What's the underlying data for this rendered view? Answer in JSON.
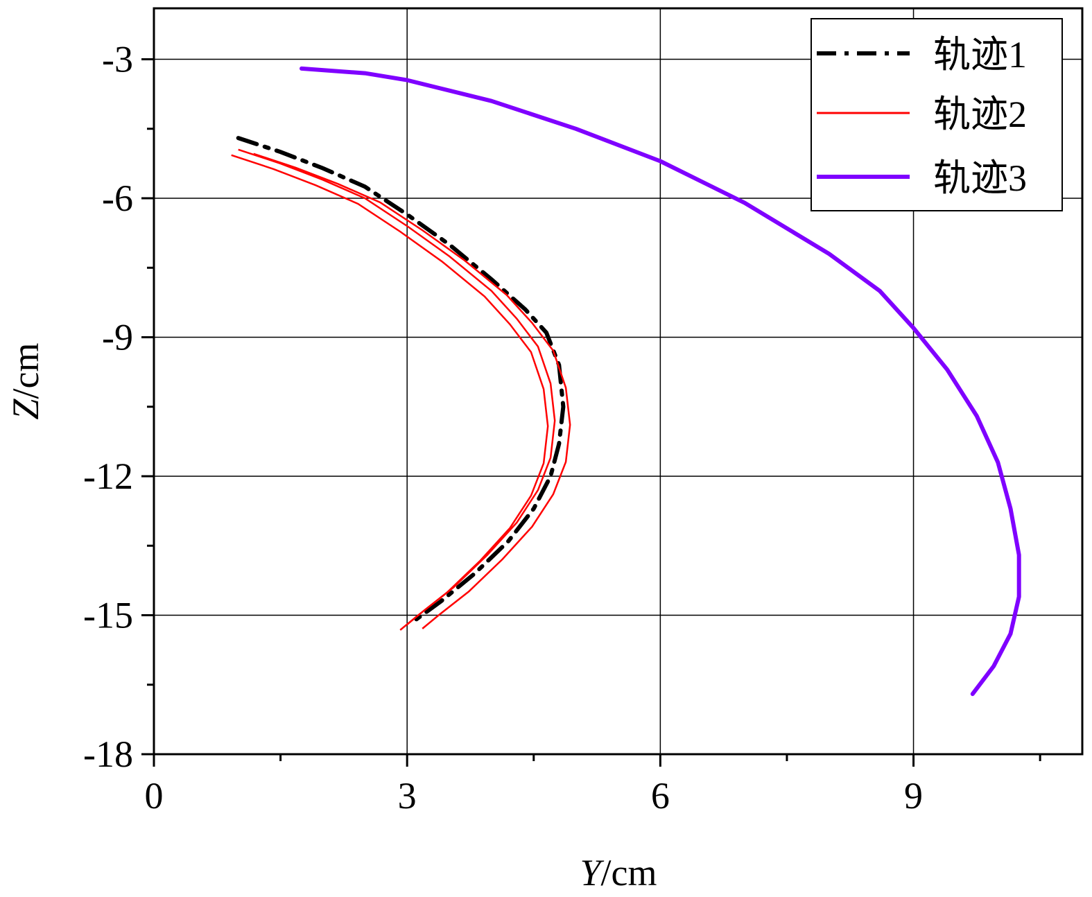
{
  "chart_data": {
    "type": "line",
    "title": "",
    "xlabel_italic": "Y",
    "xlabel_unit": "/cm",
    "ylabel_italic": "Z",
    "ylabel_unit": "/cm",
    "xlim": [
      0,
      11
    ],
    "ylim": [
      -18,
      -1.9
    ],
    "x_ticks": [
      0,
      3,
      6,
      9
    ],
    "x_tick_labels": [
      "0",
      "3",
      "6",
      "9"
    ],
    "y_ticks": [
      -3,
      -6,
      -9,
      -12,
      -15,
      -18
    ],
    "y_tick_labels": [
      "-3",
      "-6",
      "-9",
      "-12",
      "-15",
      "-18"
    ],
    "grid": true,
    "legend_position": "top-right",
    "series": [
      {
        "name": "轨迹1",
        "color": "#000000",
        "style": "dash-dot",
        "x": [
          1.0,
          1.5,
          2.0,
          2.5,
          3.0,
          3.5,
          4.0,
          4.4,
          4.65,
          4.8,
          4.85,
          4.8,
          4.7,
          4.5,
          4.2,
          3.8,
          3.4,
          3.1
        ],
        "y": [
          -4.7,
          -5.0,
          -5.35,
          -5.75,
          -6.35,
          -7.0,
          -7.75,
          -8.4,
          -8.9,
          -9.6,
          -10.5,
          -11.3,
          -12.0,
          -12.7,
          -13.4,
          -14.1,
          -14.7,
          -15.1
        ]
      },
      {
        "name": "轨迹2",
        "color": "#ff0000",
        "style": "solid",
        "x": [
          1.0,
          1.5,
          2.0,
          2.5,
          3.0,
          3.5,
          4.0,
          4.3,
          4.55,
          4.7,
          4.75,
          4.7,
          4.55,
          4.3,
          3.95,
          3.55,
          3.2,
          3.0
        ],
        "y": [
          -4.95,
          -5.25,
          -5.6,
          -6.0,
          -6.6,
          -7.25,
          -8.0,
          -8.6,
          -9.2,
          -10.0,
          -10.8,
          -11.6,
          -12.3,
          -13.0,
          -13.7,
          -14.4,
          -14.9,
          -15.2
        ]
      },
      {
        "name": "轨迹3",
        "color": "#7f00ff",
        "style": "solid",
        "x": [
          1.75,
          2.5,
          3.0,
          4.0,
          5.0,
          6.0,
          7.0,
          8.0,
          8.6,
          9.0,
          9.4,
          9.75,
          10.0,
          10.15,
          10.25,
          10.25,
          10.15,
          9.95,
          9.7
        ],
        "y": [
          -3.2,
          -3.3,
          -3.45,
          -3.9,
          -4.5,
          -5.2,
          -6.1,
          -7.2,
          -8.0,
          -8.8,
          -9.7,
          -10.7,
          -11.7,
          -12.7,
          -13.7,
          -14.6,
          -15.4,
          -16.1,
          -16.7
        ]
      }
    ]
  }
}
